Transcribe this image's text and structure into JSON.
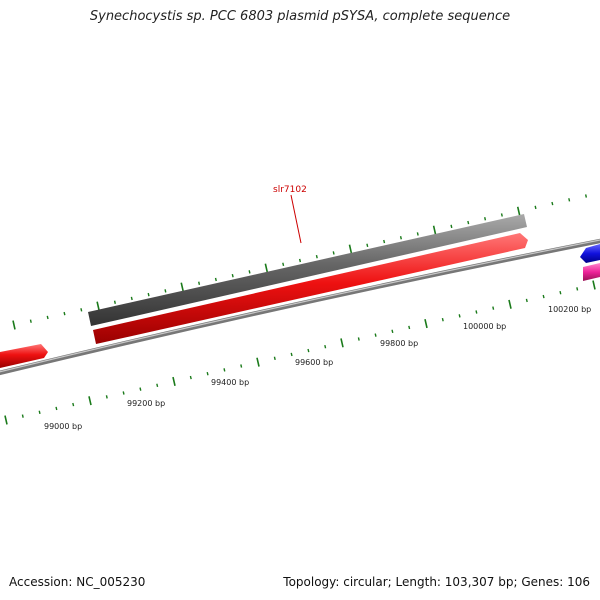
{
  "title": "Synechocystis sp. PCC 6803 plasmid pSYSA, complete sequence",
  "footer": {
    "accession": "Accession: NC_005230",
    "summary": "Topology: circular; Length: 103,307 bp; Genes: 106"
  },
  "gene_label": "slr7102",
  "scale_labels": [
    "99000 bp",
    "99200 bp",
    "99400 bp",
    "99600 bp",
    "99800 bp",
    "100000 bp",
    "100200 bp"
  ],
  "colors": {
    "backbone": "#888888",
    "tick": "#1a7a1a",
    "gene_forward": "#ee1111",
    "gene_gray": "#666666",
    "gene_blue": "#1111dd",
    "gene_pink": "#ee2299",
    "label": "#cc0000"
  }
}
